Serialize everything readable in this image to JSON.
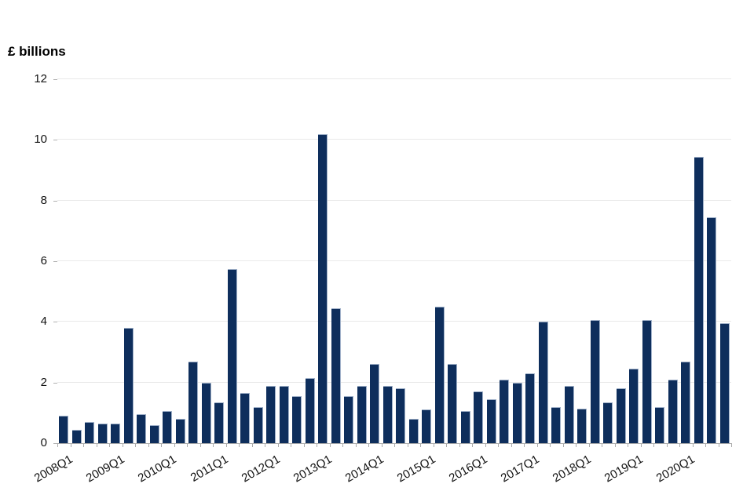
{
  "title": "£ billions",
  "colors": {
    "bar": "#0e2e5c",
    "bar_edge": "#9fb0c8",
    "gridline": "#e9e9e9",
    "axis": "#ababab",
    "text": "#111111"
  },
  "chart_data": {
    "type": "bar",
    "title": "£ billions",
    "xlabel": "",
    "ylabel": "£ billions",
    "ylim": [
      0,
      12
    ],
    "yticks": [
      0,
      2,
      4,
      6,
      8,
      10,
      12
    ],
    "grid": "horizontal",
    "legend": "none",
    "xtick_labels": [
      "2008Q1",
      "2009Q1",
      "2010Q1",
      "2011Q1",
      "2012Q1",
      "2013Q1",
      "2014Q1",
      "2015Q1",
      "2016Q1",
      "2017Q1",
      "2018Q1",
      "2019Q1",
      "2020Q1"
    ],
    "categories": [
      "2008Q1",
      "2008Q2",
      "2008Q3",
      "2008Q4",
      "2009Q1",
      "2009Q2",
      "2009Q3",
      "2009Q4",
      "2010Q1",
      "2010Q2",
      "2010Q3",
      "2010Q4",
      "2011Q1",
      "2011Q2",
      "2011Q3",
      "2011Q4",
      "2012Q1",
      "2012Q2",
      "2012Q3",
      "2012Q4",
      "2013Q1",
      "2013Q2",
      "2013Q3",
      "2013Q4",
      "2014Q1",
      "2014Q2",
      "2014Q3",
      "2014Q4",
      "2015Q1",
      "2015Q2",
      "2015Q3",
      "2015Q4",
      "2016Q1",
      "2016Q2",
      "2016Q3",
      "2016Q4",
      "2017Q1",
      "2017Q2",
      "2017Q3",
      "2017Q4",
      "2018Q1",
      "2018Q2",
      "2018Q3",
      "2018Q4",
      "2019Q1",
      "2019Q2",
      "2019Q3",
      "2019Q4",
      "2020Q1",
      "2020Q2",
      "2020Q3",
      "2020Q4"
    ],
    "values": [
      0.9,
      0.45,
      0.7,
      0.65,
      0.65,
      3.8,
      0.95,
      0.6,
      1.05,
      0.8,
      2.7,
      2.0,
      1.35,
      5.75,
      1.65,
      1.2,
      1.9,
      1.9,
      1.55,
      2.15,
      10.2,
      4.45,
      1.55,
      1.9,
      2.6,
      1.9,
      1.8,
      0.8,
      1.1,
      4.5,
      2.6,
      1.05,
      1.7,
      1.45,
      2.1,
      2.0,
      2.3,
      4.0,
      1.2,
      1.9,
      1.15,
      4.05,
      1.35,
      1.8,
      2.45,
      4.05,
      1.2,
      2.1,
      2.7,
      9.45,
      7.45,
      3.95
    ]
  }
}
